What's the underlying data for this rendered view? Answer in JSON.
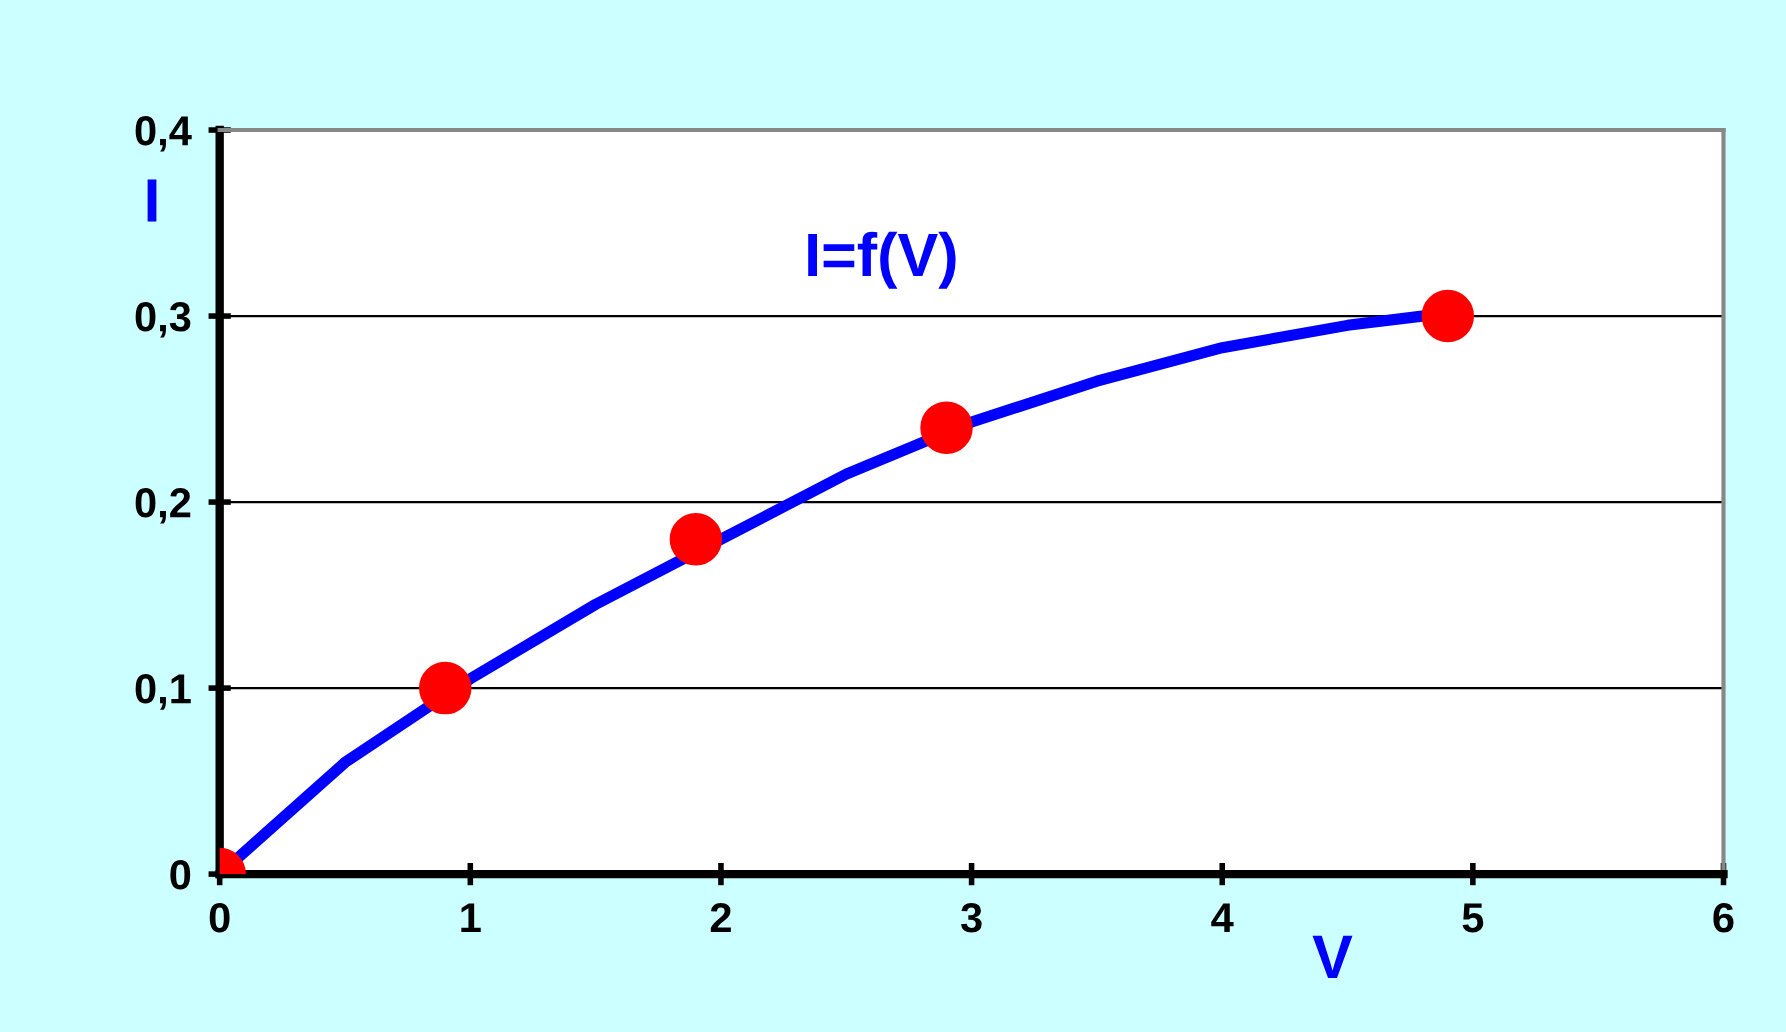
{
  "chart_data": {
    "type": "line",
    "title": "I=f(V)",
    "xlabel": "V",
    "ylabel": "I",
    "xlim": [
      0,
      6
    ],
    "xticks": [
      0,
      1,
      2,
      3,
      4,
      5,
      6
    ],
    "ylim": [
      0,
      0.4
    ],
    "yticks": [
      {
        "value": 0,
        "label": "0"
      },
      {
        "value": 0.1,
        "label": "0,1"
      },
      {
        "value": 0.2,
        "label": "0,2"
      },
      {
        "value": 0.3,
        "label": "0,3"
      },
      {
        "value": 0.4,
        "label": "0,4"
      }
    ],
    "grid": "y",
    "series": [
      {
        "color": "#0000ff",
        "marker": "none",
        "line_style": "solid",
        "x": [
          0,
          0.5,
          1,
          1.5,
          2,
          2.5,
          3,
          3.5,
          4,
          4.5,
          4.8
        ],
        "values": [
          0,
          0.06,
          0.105,
          0.145,
          0.18,
          0.215,
          0.243,
          0.265,
          0.283,
          0.295,
          0.3
        ]
      },
      {
        "type": "scatter",
        "color": "#ff0000",
        "marker": "circle",
        "x": [
          0,
          0.9,
          1.9,
          2.9,
          4.9
        ],
        "values": [
          0,
          0.1,
          0.18,
          0.24,
          0.3
        ]
      }
    ]
  }
}
